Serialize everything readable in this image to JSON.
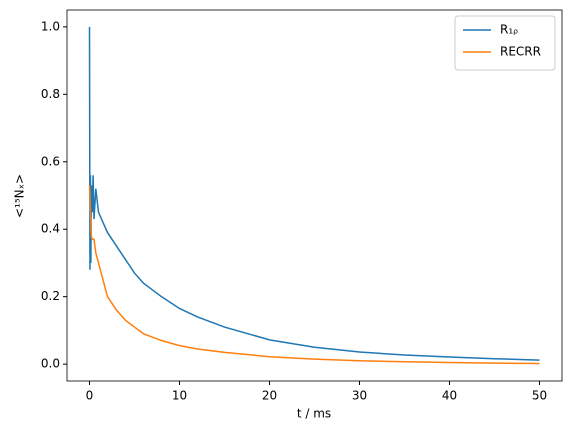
{
  "chart_data": {
    "type": "line",
    "xlabel": "t / ms",
    "ylabel": "<¹⁵Nₓ>",
    "x": [
      0,
      0.05,
      0.1,
      0.15,
      0.2,
      0.3,
      0.4,
      0.5,
      0.7,
      1,
      1.5,
      2,
      3,
      4,
      5,
      6,
      7,
      8,
      10,
      12,
      15,
      20,
      25,
      30,
      35,
      40,
      45,
      50
    ],
    "series": [
      {
        "name": "R₁ᵨ",
        "color": "#1f77b4",
        "values": [
          1.0,
          0.28,
          0.56,
          0.3,
          0.53,
          0.45,
          0.56,
          0.43,
          0.52,
          0.45,
          0.42,
          0.39,
          0.35,
          0.31,
          0.27,
          0.24,
          0.22,
          0.2,
          0.165,
          0.14,
          0.11,
          0.072,
          0.05,
          0.036,
          0.027,
          0.021,
          0.016,
          0.012
        ]
      },
      {
        "name": "RECRR",
        "color": "#ff7f0e",
        "values": [
          0.53,
          0.5,
          0.45,
          0.42,
          0.38,
          0.37,
          0.37,
          0.37,
          0.33,
          0.3,
          0.25,
          0.2,
          0.16,
          0.13,
          0.11,
          0.09,
          0.08,
          0.07,
          0.055,
          0.045,
          0.035,
          0.022,
          0.015,
          0.01,
          0.007,
          0.005,
          0.003,
          0.002
        ]
      }
    ],
    "xlim": [
      -2.5,
      52.5
    ],
    "xticks": [
      0,
      10,
      20,
      30,
      40,
      50
    ],
    "ylim": [
      -0.05,
      1.05
    ],
    "yticks": [
      {
        "value": 0,
        "label": "0.0"
      },
      {
        "value": 0.2,
        "label": "0.2"
      },
      {
        "value": 0.4,
        "label": "0.4"
      },
      {
        "value": 0.6,
        "label": "0.6"
      },
      {
        "value": 0.8,
        "label": "0.8"
      },
      {
        "value": 1,
        "label": "1.0"
      }
    ],
    "legend": "upper right",
    "grid": false
  }
}
